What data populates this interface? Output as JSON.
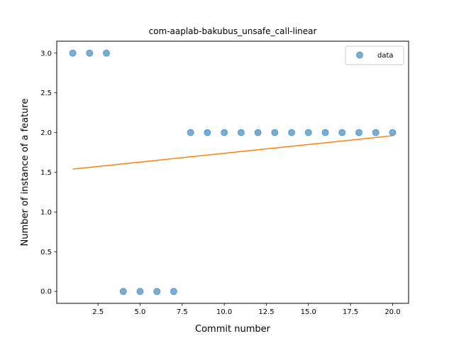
{
  "chart_data": {
    "type": "scatter",
    "title": "com-aaplab-bakubus_unsafe_call-linear",
    "xlabel": "Commit number",
    "ylabel": "Number of instance of a feature",
    "xlim": [
      0.05,
      20.95
    ],
    "ylim": [
      -0.15,
      3.15
    ],
    "xticks": [
      2.5,
      5.0,
      7.5,
      10.0,
      12.5,
      15.0,
      17.5,
      20.0
    ],
    "xtick_labels": [
      "2.5",
      "5.0",
      "7.5",
      "10.0",
      "12.5",
      "15.0",
      "17.5",
      "20.0"
    ],
    "yticks": [
      0.0,
      0.5,
      1.0,
      1.5,
      2.0,
      2.5,
      3.0
    ],
    "ytick_labels": [
      "0.0",
      "0.5",
      "1.0",
      "1.5",
      "2.0",
      "2.5",
      "3.0"
    ],
    "grid": false,
    "legend_position": "top-right",
    "series": [
      {
        "name": "data",
        "kind": "scatter",
        "color": "#1f77b4",
        "x": [
          1,
          2,
          3,
          4,
          5,
          6,
          7,
          8,
          9,
          10,
          11,
          12,
          13,
          14,
          15,
          16,
          17,
          18,
          19,
          20
        ],
        "y": [
          3,
          3,
          3,
          0,
          0,
          0,
          0,
          2,
          2,
          2,
          2,
          2,
          2,
          2,
          2,
          2,
          2,
          2,
          2,
          2
        ]
      },
      {
        "kind": "line",
        "color": "#ff7f0e",
        "x": [
          1,
          20
        ],
        "y": [
          1.54,
          1.96
        ]
      }
    ]
  }
}
